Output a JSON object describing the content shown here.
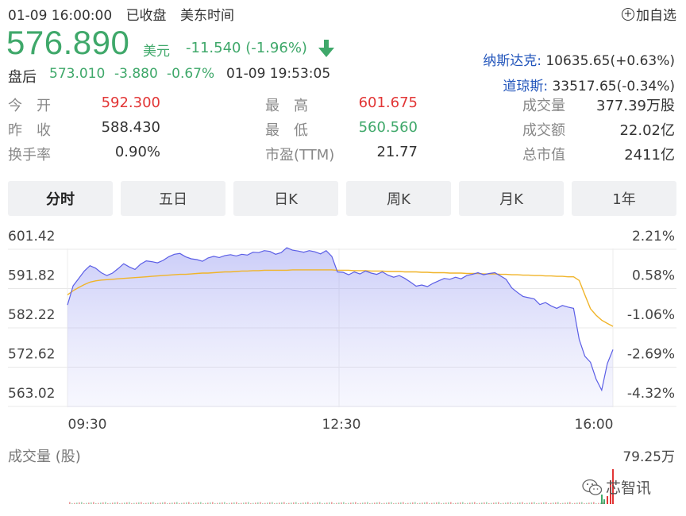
{
  "header": {
    "datetime": "01-09 16:00:00",
    "status": "已收盘",
    "timezone": "美东时间",
    "add_watchlist": "加自选"
  },
  "quote": {
    "price": "576.890",
    "currency": "美元",
    "change": "-11.540",
    "change_pct": "(-1.96%)",
    "direction_icon": "arrow-down-icon"
  },
  "after_hours": {
    "label": "盘后",
    "price": "573.010",
    "change": "-3.880",
    "change_pct": "-0.67%",
    "time": "01-09 19:53:05"
  },
  "indices": [
    {
      "name": "纳斯达克:",
      "value": "10635.65(+0.63%)"
    },
    {
      "name": "道琼斯:",
      "value": "33517.65(-0.34%)"
    }
  ],
  "stats": [
    {
      "label": "今　开",
      "value": "592.300",
      "color": "red"
    },
    {
      "label": "最　高",
      "value": "601.675",
      "color": "red"
    },
    {
      "label": "成交量",
      "value": "377.39万股",
      "color": "normal"
    },
    {
      "label": "昨　收",
      "value": "588.430",
      "color": "normal"
    },
    {
      "label": "最　低",
      "value": "560.560",
      "color": "green"
    },
    {
      "label": "成交额",
      "value": "22.02亿",
      "color": "normal"
    },
    {
      "label": "换手率",
      "value": "0.90%",
      "color": "normal"
    },
    {
      "label": "市盈(TTM)",
      "value": "21.77",
      "color": "normal"
    },
    {
      "label": "总市值",
      "value": "2411亿",
      "color": "normal"
    }
  ],
  "tabs": [
    {
      "label": "分时",
      "active": true
    },
    {
      "label": "五日",
      "active": false
    },
    {
      "label": "日K",
      "active": false
    },
    {
      "label": "周K",
      "active": false
    },
    {
      "label": "月K",
      "active": false
    },
    {
      "label": "1年",
      "active": false
    }
  ],
  "chart_data": {
    "type": "line",
    "y_ticks": [
      "601.42",
      "591.82",
      "582.22",
      "572.62",
      "563.02"
    ],
    "y_pct_ticks": [
      "2.21%",
      "0.58%",
      "-1.06%",
      "-2.69%",
      "-4.32%"
    ],
    "x_ticks": [
      "09:30",
      "12:30",
      "16:00"
    ],
    "ylim": [
      563.02,
      601.42
    ],
    "prev_close": 588.43,
    "series": [
      {
        "values": [
          584.5,
          589.2,
          591.0,
          592.8,
          594.1,
          593.5,
          592.4,
          591.7,
          592.3,
          593.4,
          594.6,
          593.8,
          593.2,
          594.5,
          595.3,
          595.1,
          594.8,
          595.4,
          596.3,
          596.9,
          597.1,
          596.3,
          595.8,
          595.6,
          595.2,
          596.0,
          596.4,
          596.1,
          596.6,
          596.8,
          596.5,
          596.9,
          596.7,
          597.4,
          597.3,
          597.8,
          597.6,
          596.9,
          597.3,
          598.5,
          597.9,
          597.7,
          597.4,
          597.8,
          597.5,
          597.0,
          597.8,
          596.4,
          592.6,
          592.5,
          591.9,
          592.6,
          592.1,
          592.8,
          592.3,
          592.0,
          592.6,
          591.8,
          591.3,
          591.7,
          591.0,
          590.1,
          589.1,
          589.4,
          589.0,
          589.8,
          590.4,
          591.0,
          590.8,
          591.3,
          590.9,
          591.7,
          592.0,
          592.4,
          591.9,
          592.2,
          592.4,
          591.6,
          590.8,
          588.7,
          587.6,
          586.6,
          586.3,
          586.0,
          584.6,
          585.1,
          584.3,
          583.7,
          584.4,
          584.0,
          583.7,
          576.1,
          572.0,
          570.5,
          566.4,
          563.7,
          570.2,
          573.6
        ],
        "color": "#5b5ee6"
      },
      {
        "values": [
          587.0,
          588.0,
          588.8,
          589.5,
          590.1,
          590.4,
          590.6,
          590.7,
          590.8,
          590.9,
          591.0,
          591.1,
          591.2,
          591.3,
          591.4,
          591.5,
          591.6,
          591.7,
          591.8,
          591.9,
          592.0,
          592.0,
          592.1,
          592.2,
          592.3,
          592.3,
          592.4,
          592.5,
          592.6,
          592.6,
          592.7,
          592.8,
          592.8,
          592.9,
          592.9,
          593.0,
          593.0,
          593.0,
          593.0,
          593.0,
          593.1,
          593.1,
          593.1,
          593.1,
          593.1,
          593.1,
          593.1,
          593.1,
          593.0,
          593.0,
          593.0,
          592.9,
          592.9,
          592.9,
          592.8,
          592.8,
          592.8,
          592.7,
          592.7,
          592.7,
          592.6,
          592.6,
          592.6,
          592.5,
          592.5,
          592.4,
          592.4,
          592.4,
          592.3,
          592.3,
          592.3,
          592.2,
          592.2,
          592.2,
          592.1,
          592.1,
          592.1,
          592.0,
          592.0,
          591.9,
          591.9,
          591.8,
          591.8,
          591.7,
          591.7,
          591.6,
          591.6,
          591.5,
          591.5,
          591.4,
          591.4,
          590.5,
          587.0,
          583.6,
          582.0,
          580.8,
          580.0,
          579.3
        ],
        "color": "#f0b429"
      }
    ]
  },
  "volume": {
    "label": "成交量 (股)",
    "max": "79.25万"
  },
  "watermark": {
    "text": "芯智讯"
  }
}
